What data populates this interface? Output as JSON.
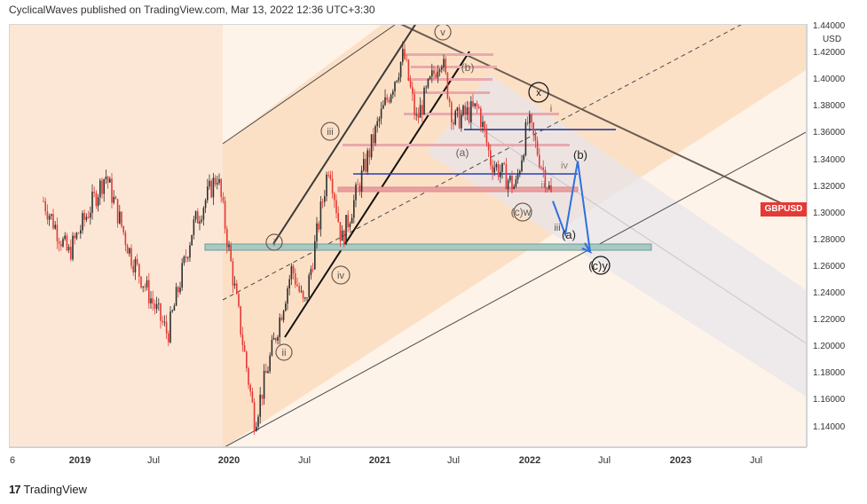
{
  "header": {
    "publisher_text": "CyclicalWaves published on TradingView.com, Mar 13, 2022 12:36 UTC+3:30"
  },
  "symbol": {
    "ticker": "GBPUSD",
    "color": "#e53935"
  },
  "price_axis": {
    "unit": "USD",
    "labels": [
      "1.44000",
      "1.42000",
      "1.40000",
      "1.38000",
      "1.36000",
      "1.34000",
      "1.32000",
      "1.30000",
      "1.28000",
      "1.26000",
      "1.24000",
      "1.22000",
      "1.20000",
      "1.18000",
      "1.16000",
      "1.14000"
    ]
  },
  "time_axis": {
    "labels": [
      "6",
      "2019",
      "Jul",
      "2020",
      "Jul",
      "2021",
      "Jul",
      "2022",
      "Jul",
      "2023",
      "Jul"
    ]
  },
  "wave_labels": {
    "i": "i",
    "ii": "ii",
    "iii": "iii",
    "iv": "iv",
    "v": "v",
    "x": "x",
    "a_small": "(a)",
    "b_small": "(b)",
    "cw": "(c)w",
    "i2": "i",
    "ii2": "ii",
    "iii2": "iii",
    "iv2": "iv",
    "a_proj": "(a)",
    "b_proj": "(b)",
    "cy": "(c)y"
  },
  "brand": {
    "logo_text": "17",
    "name": "TradingView"
  },
  "chart_data": {
    "type": "candlestick",
    "symbol": "GBPUSD",
    "ylim": [
      1.13,
      1.445
    ],
    "x_ticks": [
      "2019",
      "Jul",
      "2020",
      "Jul",
      "2021",
      "Jul",
      "2022",
      "Jul",
      "2023",
      "Jul"
    ],
    "y_ticks": [
      1.44,
      1.42,
      1.4,
      1.38,
      1.36,
      1.34,
      1.32,
      1.3,
      1.28,
      1.26,
      1.24,
      1.22,
      1.2,
      1.18,
      1.16,
      1.14
    ],
    "key_levels": {
      "support_zone": 1.274,
      "resistance_line": 1.363
    },
    "price_path": [
      [
        "2018-10",
        1.31
      ],
      [
        "2018-12",
        1.27
      ],
      [
        "2019-03",
        1.33
      ],
      [
        "2019-05",
        1.27
      ],
      [
        "2019-08",
        1.21
      ],
      [
        "2019-10",
        1.29
      ],
      [
        "2019-12",
        1.33
      ],
      [
        "2020-03",
        1.145
      ],
      [
        "2020-06",
        1.26
      ],
      [
        "2020-07",
        1.23
      ],
      [
        "2020-09",
        1.34
      ],
      [
        "2020-10",
        1.28
      ],
      [
        "2021-01",
        1.37
      ],
      [
        "2021-03",
        1.42
      ],
      [
        "2021-04",
        1.37
      ],
      [
        "2021-06",
        1.42
      ],
      [
        "2021-07",
        1.37
      ],
      [
        "2021-09",
        1.38
      ],
      [
        "2021-10",
        1.34
      ],
      [
        "2021-12",
        1.32
      ],
      [
        "2022-01",
        1.37
      ],
      [
        "2022-03",
        1.31
      ]
    ],
    "projection_path": [
      [
        "2022-03",
        1.31
      ],
      [
        "2022-04",
        1.285
      ],
      [
        "2022-05",
        1.34
      ],
      [
        "2022-06",
        1.272
      ]
    ]
  }
}
